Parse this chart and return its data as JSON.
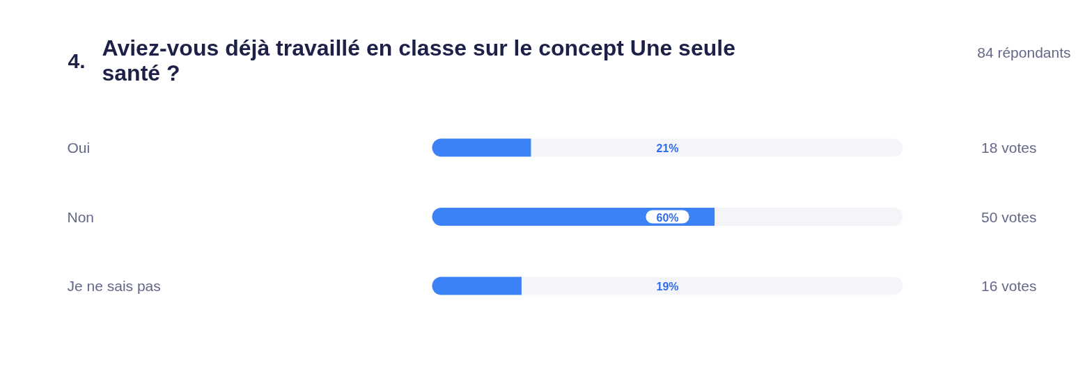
{
  "chart_data": {
    "type": "bar",
    "orientation": "horizontal",
    "title": "Aviez-vous déjà travaillé en classe sur le concept Une seule santé ?",
    "categories": [
      "Oui",
      "Non",
      "Je ne sais pas"
    ],
    "values": [
      21,
      60,
      19
    ],
    "value_labels": [
      "21%",
      "60%",
      "19%"
    ],
    "color": "#3b82f6",
    "xlim": [
      0,
      100
    ],
    "tick_labels": "y",
    "annotations": [
      "4.",
      "84 répondants",
      "18 votes",
      "50 votes",
      "16 votes"
    ]
  }
}
